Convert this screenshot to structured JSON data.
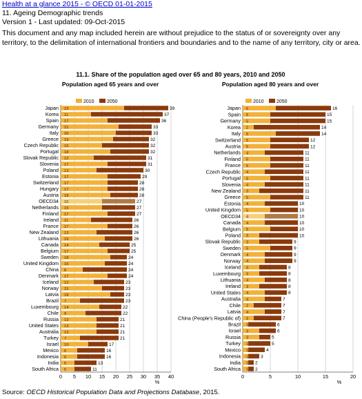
{
  "header": {
    "link_text": "Health at a glance 2015 - © OECD 01-01-2015",
    "section": "11. Ageing Demographic trends",
    "version": "Version 1 - Last updated: 09-Oct-2015",
    "notice": "This document and any map included herein are without prejudice to the status of or sovereignty over any territory, to the delimitation of international frontiers and boundaries and to the name of any territory, city or area."
  },
  "figure_title": "11.1. Share of the population aged over 65 and 80 years, 2010 and 2050",
  "source": {
    "prefix": "Source: ",
    "italic": "OECD Historical Population Data and Projections Database",
    "suffix": ", 2015."
  },
  "colors": {
    "y2010": "#f2b13a",
    "y2050": "#8b3a0c",
    "oecd2010": "#f6d07a",
    "oecd2050": "#b07a45",
    "grid": "#bbbbbb"
  },
  "chart_data": [
    {
      "type": "bar",
      "title": "Population aged 65 years and over",
      "xlabel": "%",
      "xlim": [
        0,
        40
      ],
      "xticks": [
        0,
        5,
        10,
        15,
        20,
        25,
        30,
        35,
        40
      ],
      "legend": [
        "2010",
        "2050"
      ],
      "legend_position": "top-left",
      "categories": [
        "Japan",
        "Korea",
        "Spain",
        "Germany",
        "Italy",
        "Greece",
        "Czech Republic",
        "Portugal",
        "Slovak Republic",
        "Slovenia",
        "Poland",
        "Estonia",
        "Switzerland",
        "Hungary",
        "Austria",
        "OECD34",
        "Netherlands",
        "Finland",
        "Ireland",
        "France",
        "New Zealand",
        "Lithuania",
        "Canada",
        "Belgium",
        "Sweden",
        "United Kingdom",
        "China",
        "Denmark",
        "Iceland",
        "Norway",
        "Latvia",
        "Brazil",
        "Luxembourg",
        "Chile",
        "Russia",
        "United States",
        "Australia",
        "Turkey",
        "Israel",
        "Mexico",
        "Indonesia",
        "India",
        "South Africa"
      ],
      "series": [
        {
          "name": "2010",
          "values": [
            23,
            11,
            17,
            21,
            20,
            19,
            15,
            18,
            12,
            17,
            13,
            17,
            17,
            17,
            18,
            15,
            15,
            17,
            11,
            17,
            13,
            16,
            14,
            17,
            18,
            16,
            8,
            17,
            12,
            15,
            18,
            7,
            14,
            9,
            13,
            13,
            13,
            7,
            10,
            6,
            6,
            5,
            5
          ]
        },
        {
          "name": "2050",
          "values": [
            39,
            37,
            36,
            33,
            33,
            32,
            32,
            32,
            31,
            31,
            30,
            29,
            28,
            28,
            28,
            27,
            27,
            27,
            26,
            26,
            26,
            26,
            25,
            25,
            24,
            24,
            24,
            24,
            23,
            23,
            23,
            23,
            22,
            22,
            21,
            21,
            21,
            21,
            17,
            16,
            16,
            13,
            11
          ]
        }
      ]
    },
    {
      "type": "bar",
      "title": "Population aged 80 years and over",
      "xlabel": "%",
      "xlim": [
        0,
        20
      ],
      "xticks": [
        0,
        5,
        10,
        15,
        20
      ],
      "legend": [
        "2010",
        "2050"
      ],
      "legend_position": "top-left",
      "categories": [
        "Japan",
        "Spain",
        "Germany",
        "Korea",
        "Italy",
        "Switzerland",
        "Austria",
        "Netherlands",
        "Finland",
        "France",
        "Czech Republic",
        "Portugal",
        "Slovenia",
        "New Zealand",
        "Greece",
        "Estonia",
        "United Kingdom",
        "OECD34",
        "Canada",
        "Belgium",
        "Poland",
        "Slovak Republic",
        "Sweden",
        "Denmark",
        "Norway",
        "Iceland",
        "Luxembourg",
        "Lithuania",
        "Ireland",
        "United States",
        "Australia",
        "Chile",
        "Latvia",
        "China (People's Republic of)",
        "Brazil",
        "Israel",
        "Russia",
        "Turkey",
        "Mexico",
        "Indonesia",
        "India",
        "South Africa"
      ],
      "series": [
        {
          "name": "2010",
          "values": [
            6,
            5,
            5,
            2,
            6,
            5,
            5,
            4,
            5,
            5,
            4,
            5,
            4,
            3,
            5,
            4,
            5,
            4,
            4,
            5,
            3,
            3,
            5,
            4,
            4,
            3,
            3,
            4,
            3,
            4,
            4,
            2,
            4,
            2,
            1,
            3,
            3,
            1,
            1,
            1,
            1,
            1
          ]
        },
        {
          "name": "2050",
          "values": [
            16,
            15,
            15,
            14,
            14,
            12,
            12,
            11,
            11,
            11,
            11,
            11,
            11,
            11,
            11,
            10,
            10,
            10,
            10,
            10,
            10,
            9,
            9,
            9,
            9,
            8,
            8,
            8,
            8,
            8,
            7,
            7,
            7,
            7,
            6,
            6,
            5,
            5,
            4,
            3,
            2,
            2
          ]
        }
      ]
    }
  ]
}
